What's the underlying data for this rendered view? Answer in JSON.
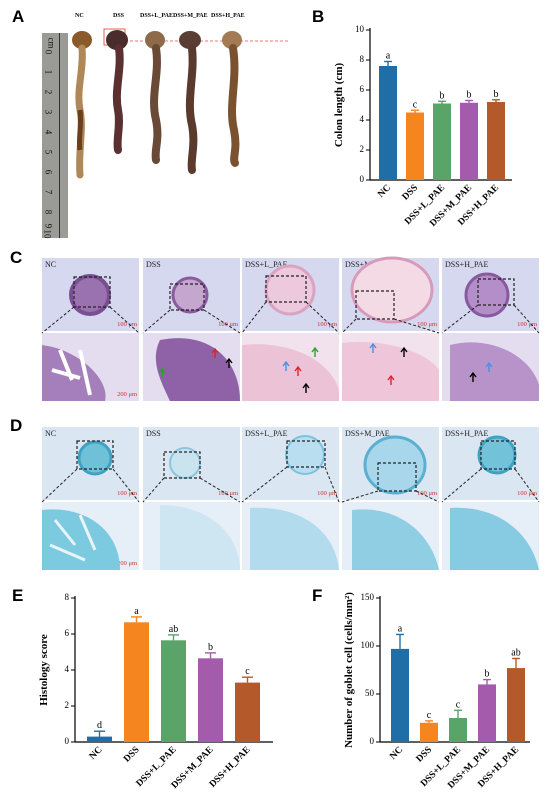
{
  "panels": {
    "A": "A",
    "B": "B",
    "C": "C",
    "D": "D",
    "E": "E",
    "F": "F"
  },
  "panel_a": {
    "group_labels": [
      "NC",
      "DSS",
      "DSS+L_PAE",
      "DSS+M_PAE",
      "DSS+H_PAE"
    ],
    "ruler_unit": "cm",
    "ruler_numbers": [
      "0",
      "1",
      "2",
      "3",
      "4",
      "5",
      "6",
      "7",
      "8",
      "9",
      "10"
    ]
  },
  "micrographs": {
    "groups": [
      "NC",
      "DSS",
      "DSS+L_PAE",
      "DSS+M_PAE",
      "DSS+H_PAE"
    ],
    "scale_low": "100 μm",
    "scale_high": "200 μm"
  },
  "colors": {
    "NC": "#1f6ea8",
    "DSS": "#f5861f",
    "DSS+L_PAE": "#5aa46a",
    "DSS+M_PAE": "#a45bab",
    "DSS+H_PAE": "#b45a2a",
    "arrow_red": "#d62728",
    "arrow_green": "#2ca02c",
    "arrow_blue": "#4a90e2",
    "arrow_black": "#000000",
    "scale_text": "#c0392b"
  },
  "chart_data": [
    {
      "id": "B",
      "type": "bar",
      "categories": [
        "NC",
        "DSS",
        "DSS+L_PAE",
        "DSS+M_PAE",
        "DSS+H_PAE"
      ],
      "values": [
        7.6,
        4.5,
        5.1,
        5.15,
        5.2
      ],
      "errors": [
        0.3,
        0.15,
        0.15,
        0.15,
        0.15
      ],
      "significance": [
        "a",
        "c",
        "b",
        "b",
        "b"
      ],
      "ylabel": "Colon length (cm)",
      "ylim": [
        0,
        10
      ],
      "yticks": [
        0,
        2,
        4,
        6,
        8,
        10
      ]
    },
    {
      "id": "E",
      "type": "bar",
      "categories": [
        "NC",
        "DSS",
        "DSS+L_PAE",
        "DSS+M_PAE",
        "DSS+H_PAE"
      ],
      "values": [
        0.3,
        6.65,
        5.65,
        4.65,
        3.3
      ],
      "errors": [
        0.3,
        0.3,
        0.3,
        0.3,
        0.3
      ],
      "significance": [
        "d",
        "a",
        "ab",
        "b",
        "c"
      ],
      "ylabel": "Histology score",
      "ylim": [
        0,
        8
      ],
      "yticks": [
        0,
        2,
        4,
        6,
        8
      ]
    },
    {
      "id": "F",
      "type": "bar",
      "categories": [
        "NC",
        "DSS",
        "DSS+L_PAE",
        "DSS+M_PAE",
        "DSS+H_PAE"
      ],
      "values": [
        97,
        20,
        25,
        60,
        77
      ],
      "errors": [
        15,
        2,
        8,
        5,
        10
      ],
      "significance": [
        "a",
        "c",
        "c",
        "b",
        "ab"
      ],
      "ylabel": "Number of goblet cell (cells/mm²)",
      "ylim": [
        0,
        150
      ],
      "yticks": [
        0,
        50,
        100,
        150
      ]
    }
  ]
}
